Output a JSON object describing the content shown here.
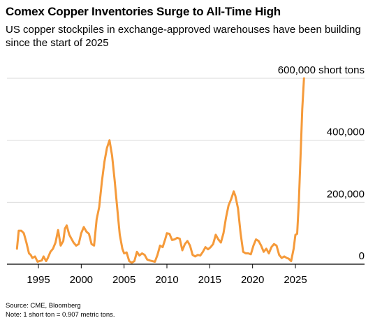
{
  "title": "Comex Copper Inventories Surge to All-Time High",
  "subtitle": "US copper stockpiles in exchange-approved warehouses have been building since the start of 2025",
  "footer": {
    "source": "Source: CME, Bloomberg",
    "note": "Note: 1 short ton = 0.907 metric tons."
  },
  "colors": {
    "line": "#f59a3a",
    "grid": "#d9d9d9",
    "axis": "#000000"
  },
  "chart_data": {
    "type": "line",
    "title": "Comex Copper Inventories Surge to All-Time High",
    "unit": "short tons",
    "y_tick_labels": [
      "0",
      "200,000",
      "400,000",
      "600,000 short tons"
    ],
    "y_ticks": [
      0,
      200000,
      400000,
      600000
    ],
    "x_ticks": [
      1995,
      2000,
      2005,
      2010,
      2015,
      2020,
      2025
    ],
    "xlim": [
      1992,
      2027
    ],
    "ylim": [
      0,
      600000
    ],
    "grid": "horizontal",
    "legend": "none",
    "series": [
      {
        "x": [
          1992.5,
          1992.7,
          1993.0,
          1993.3,
          1993.6,
          1993.9,
          1994.1,
          1994.3,
          1994.6,
          1994.9,
          1995.1,
          1995.4,
          1995.6,
          1995.9,
          1996.1,
          1996.4,
          1996.7,
          1997.0,
          1997.3,
          1997.6,
          1997.9,
          1998.1,
          1998.3,
          1998.6,
          1998.9,
          1999.1,
          1999.4,
          1999.7,
          2000.0,
          2000.3,
          2000.6,
          2000.9,
          2001.2,
          2001.5,
          2001.8,
          2002.1,
          2002.4,
          2002.7,
          2003.0,
          2003.3,
          2003.6,
          2003.9,
          2004.2,
          2004.5,
          2004.8,
          2005.0,
          2005.3,
          2005.6,
          2005.9,
          2006.2,
          2006.5,
          2006.8,
          2007.1,
          2007.4,
          2007.7,
          2008.0,
          2008.3,
          2008.6,
          2008.9,
          2009.2,
          2009.5,
          2009.8,
          2010.0,
          2010.3,
          2010.6,
          2010.9,
          2011.2,
          2011.5,
          2011.8,
          2012.1,
          2012.4,
          2012.7,
          2013.0,
          2013.3,
          2013.6,
          2013.9,
          2014.2,
          2014.5,
          2014.8,
          2015.1,
          2015.4,
          2015.7,
          2016.0,
          2016.3,
          2016.6,
          2016.9,
          2017.2,
          2017.5,
          2017.8,
          2018.0,
          2018.3,
          2018.6,
          2018.9,
          2019.2,
          2019.5,
          2019.8,
          2020.1,
          2020.4,
          2020.7,
          2021.0,
          2021.3,
          2021.6,
          2021.9,
          2022.2,
          2022.5,
          2022.8,
          2023.1,
          2023.4,
          2023.7,
          2024.0,
          2024.2,
          2024.5,
          2024.8,
          2025.0,
          2025.2,
          2025.4,
          2025.6,
          2025.8,
          2026.0
        ],
        "y": [
          50000,
          108000,
          108000,
          100000,
          70000,
          35000,
          30000,
          20000,
          25000,
          8000,
          10000,
          12000,
          25000,
          10000,
          20000,
          40000,
          50000,
          70000,
          110000,
          60000,
          75000,
          115000,
          125000,
          95000,
          80000,
          70000,
          60000,
          65000,
          100000,
          120000,
          105000,
          98000,
          65000,
          60000,
          145000,
          185000,
          265000,
          330000,
          375000,
          400000,
          350000,
          270000,
          180000,
          95000,
          50000,
          35000,
          38000,
          10000,
          5000,
          10000,
          40000,
          28000,
          35000,
          30000,
          15000,
          12000,
          10000,
          8000,
          30000,
          60000,
          55000,
          80000,
          100000,
          98000,
          78000,
          80000,
          85000,
          82000,
          45000,
          65000,
          75000,
          60000,
          30000,
          25000,
          30000,
          28000,
          40000,
          55000,
          48000,
          55000,
          65000,
          95000,
          80000,
          70000,
          100000,
          150000,
          190000,
          210000,
          235000,
          220000,
          180000,
          100000,
          40000,
          35000,
          35000,
          32000,
          60000,
          80000,
          75000,
          60000,
          40000,
          50000,
          35000,
          55000,
          65000,
          60000,
          30000,
          20000,
          25000,
          20000,
          18000,
          10000,
          50000,
          95000,
          98000,
          200000,
          350000,
          500000,
          600000
        ]
      }
    ]
  }
}
